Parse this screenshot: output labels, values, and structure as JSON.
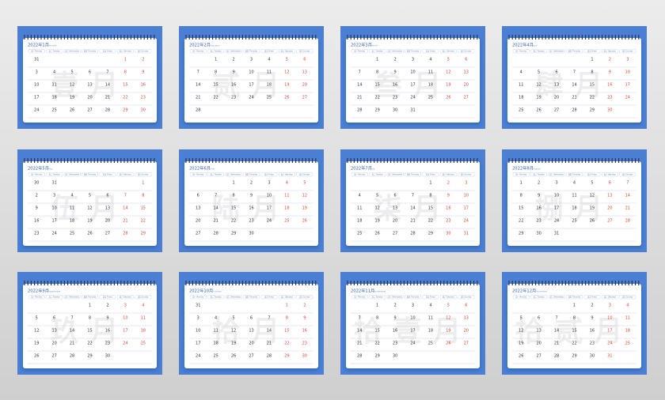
{
  "weekdays": [
    "周一 Monday",
    "周二 Tuesday",
    "周三 Wednesday",
    "周四 Thursday",
    "周五 Friday",
    "周六 Saturday",
    "周日 Sunday"
  ],
  "months": [
    {
      "title": "2022年1月",
      "subtitle": "January",
      "watermark": "壹月",
      "weeks": [
        [
          31,
          null,
          null,
          null,
          null,
          1,
          2
        ],
        [
          3,
          4,
          5,
          6,
          7,
          8,
          9
        ],
        [
          10,
          11,
          12,
          13,
          14,
          15,
          16
        ],
        [
          17,
          18,
          19,
          20,
          21,
          22,
          23
        ],
        [
          24,
          25,
          26,
          27,
          28,
          29,
          30
        ]
      ]
    },
    {
      "title": "2022年2月",
      "subtitle": "February",
      "watermark": "贰月",
      "weeks": [
        [
          null,
          1,
          2,
          3,
          4,
          5,
          6
        ],
        [
          7,
          8,
          9,
          10,
          11,
          12,
          13
        ],
        [
          14,
          15,
          16,
          17,
          18,
          19,
          20
        ],
        [
          21,
          22,
          23,
          24,
          25,
          26,
          27
        ],
        [
          28,
          null,
          null,
          null,
          null,
          null,
          null
        ]
      ]
    },
    {
      "title": "2022年3月",
      "subtitle": "March",
      "watermark": "叁月",
      "weeks": [
        [
          null,
          1,
          2,
          3,
          4,
          5,
          6
        ],
        [
          7,
          8,
          9,
          10,
          11,
          12,
          13
        ],
        [
          14,
          15,
          16,
          17,
          18,
          19,
          20
        ],
        [
          21,
          22,
          23,
          24,
          25,
          26,
          27
        ],
        [
          28,
          29,
          30,
          31,
          null,
          null,
          null
        ]
      ]
    },
    {
      "title": "2022年4月",
      "subtitle": "April",
      "watermark": "肆月",
      "weeks": [
        [
          null,
          null,
          null,
          null,
          1,
          2,
          3
        ],
        [
          4,
          5,
          6,
          7,
          8,
          9,
          10
        ],
        [
          11,
          12,
          13,
          14,
          15,
          16,
          17
        ],
        [
          18,
          19,
          20,
          21,
          22,
          23,
          24
        ],
        [
          25,
          26,
          27,
          28,
          29,
          30,
          null
        ]
      ]
    },
    {
      "title": "2022年5月",
      "subtitle": "May",
      "watermark": "伍月",
      "weeks": [
        [
          30,
          31,
          null,
          null,
          null,
          null,
          1
        ],
        [
          2,
          3,
          4,
          5,
          6,
          7,
          8
        ],
        [
          9,
          10,
          11,
          12,
          13,
          14,
          15
        ],
        [
          16,
          17,
          18,
          19,
          20,
          21,
          22
        ],
        [
          23,
          24,
          25,
          26,
          27,
          28,
          29
        ]
      ]
    },
    {
      "title": "2022年6月",
      "subtitle": "June",
      "watermark": "陆月",
      "weeks": [
        [
          null,
          null,
          1,
          2,
          3,
          4,
          5
        ],
        [
          6,
          7,
          8,
          9,
          10,
          11,
          12
        ],
        [
          13,
          14,
          15,
          16,
          17,
          18,
          19
        ],
        [
          20,
          21,
          22,
          23,
          24,
          25,
          26
        ],
        [
          27,
          28,
          29,
          30,
          null,
          null,
          null
        ]
      ]
    },
    {
      "title": "2022年7月",
      "subtitle": "July",
      "watermark": "柒月",
      "weeks": [
        [
          null,
          null,
          null,
          null,
          1,
          2,
          3
        ],
        [
          4,
          5,
          6,
          7,
          8,
          9,
          10
        ],
        [
          11,
          12,
          13,
          14,
          15,
          16,
          17
        ],
        [
          18,
          19,
          20,
          21,
          22,
          23,
          24
        ],
        [
          25,
          26,
          27,
          28,
          29,
          30,
          31
        ]
      ]
    },
    {
      "title": "2022年8月",
      "subtitle": "August",
      "watermark": "捌月",
      "weeks": [
        [
          1,
          2,
          3,
          4,
          5,
          6,
          7
        ],
        [
          8,
          9,
          10,
          11,
          12,
          13,
          14
        ],
        [
          15,
          16,
          17,
          18,
          19,
          20,
          21
        ],
        [
          22,
          23,
          24,
          25,
          26,
          27,
          28
        ],
        [
          29,
          30,
          31,
          null,
          null,
          null,
          null
        ]
      ]
    },
    {
      "title": "2022年9月",
      "subtitle": "September",
      "watermark": "玖月",
      "weeks": [
        [
          null,
          null,
          null,
          1,
          2,
          3,
          4
        ],
        [
          5,
          6,
          7,
          8,
          9,
          10,
          11
        ],
        [
          12,
          13,
          14,
          15,
          16,
          17,
          18
        ],
        [
          19,
          20,
          21,
          22,
          23,
          24,
          25
        ],
        [
          26,
          27,
          28,
          29,
          30,
          null,
          null
        ]
      ]
    },
    {
      "title": "2022年10月",
      "subtitle": "October",
      "watermark": "拾月",
      "weeks": [
        [
          31,
          null,
          null,
          null,
          null,
          1,
          2
        ],
        [
          3,
          4,
          5,
          6,
          7,
          8,
          9
        ],
        [
          10,
          11,
          12,
          13,
          14,
          15,
          16
        ],
        [
          17,
          18,
          19,
          20,
          21,
          22,
          23
        ],
        [
          24,
          25,
          26,
          27,
          28,
          29,
          30
        ]
      ]
    },
    {
      "title": "2022年11月",
      "subtitle": "November",
      "watermark": "拾壹月",
      "weeks": [
        [
          null,
          1,
          2,
          3,
          4,
          5,
          6
        ],
        [
          7,
          8,
          9,
          10,
          11,
          12,
          13
        ],
        [
          14,
          15,
          16,
          17,
          18,
          19,
          20
        ],
        [
          21,
          22,
          23,
          24,
          25,
          26,
          27
        ],
        [
          28,
          29,
          30,
          null,
          null,
          null,
          null
        ]
      ]
    },
    {
      "title": "2022年12月",
      "subtitle": "December",
      "watermark": "拾贰月",
      "weeks": [
        [
          null,
          null,
          null,
          1,
          2,
          3,
          4
        ],
        [
          5,
          6,
          7,
          8,
          9,
          10,
          11
        ],
        [
          12,
          13,
          14,
          15,
          16,
          17,
          18
        ],
        [
          19,
          20,
          21,
          22,
          23,
          24,
          25
        ],
        [
          26,
          27,
          28,
          29,
          30,
          31,
          null
        ]
      ]
    }
  ]
}
